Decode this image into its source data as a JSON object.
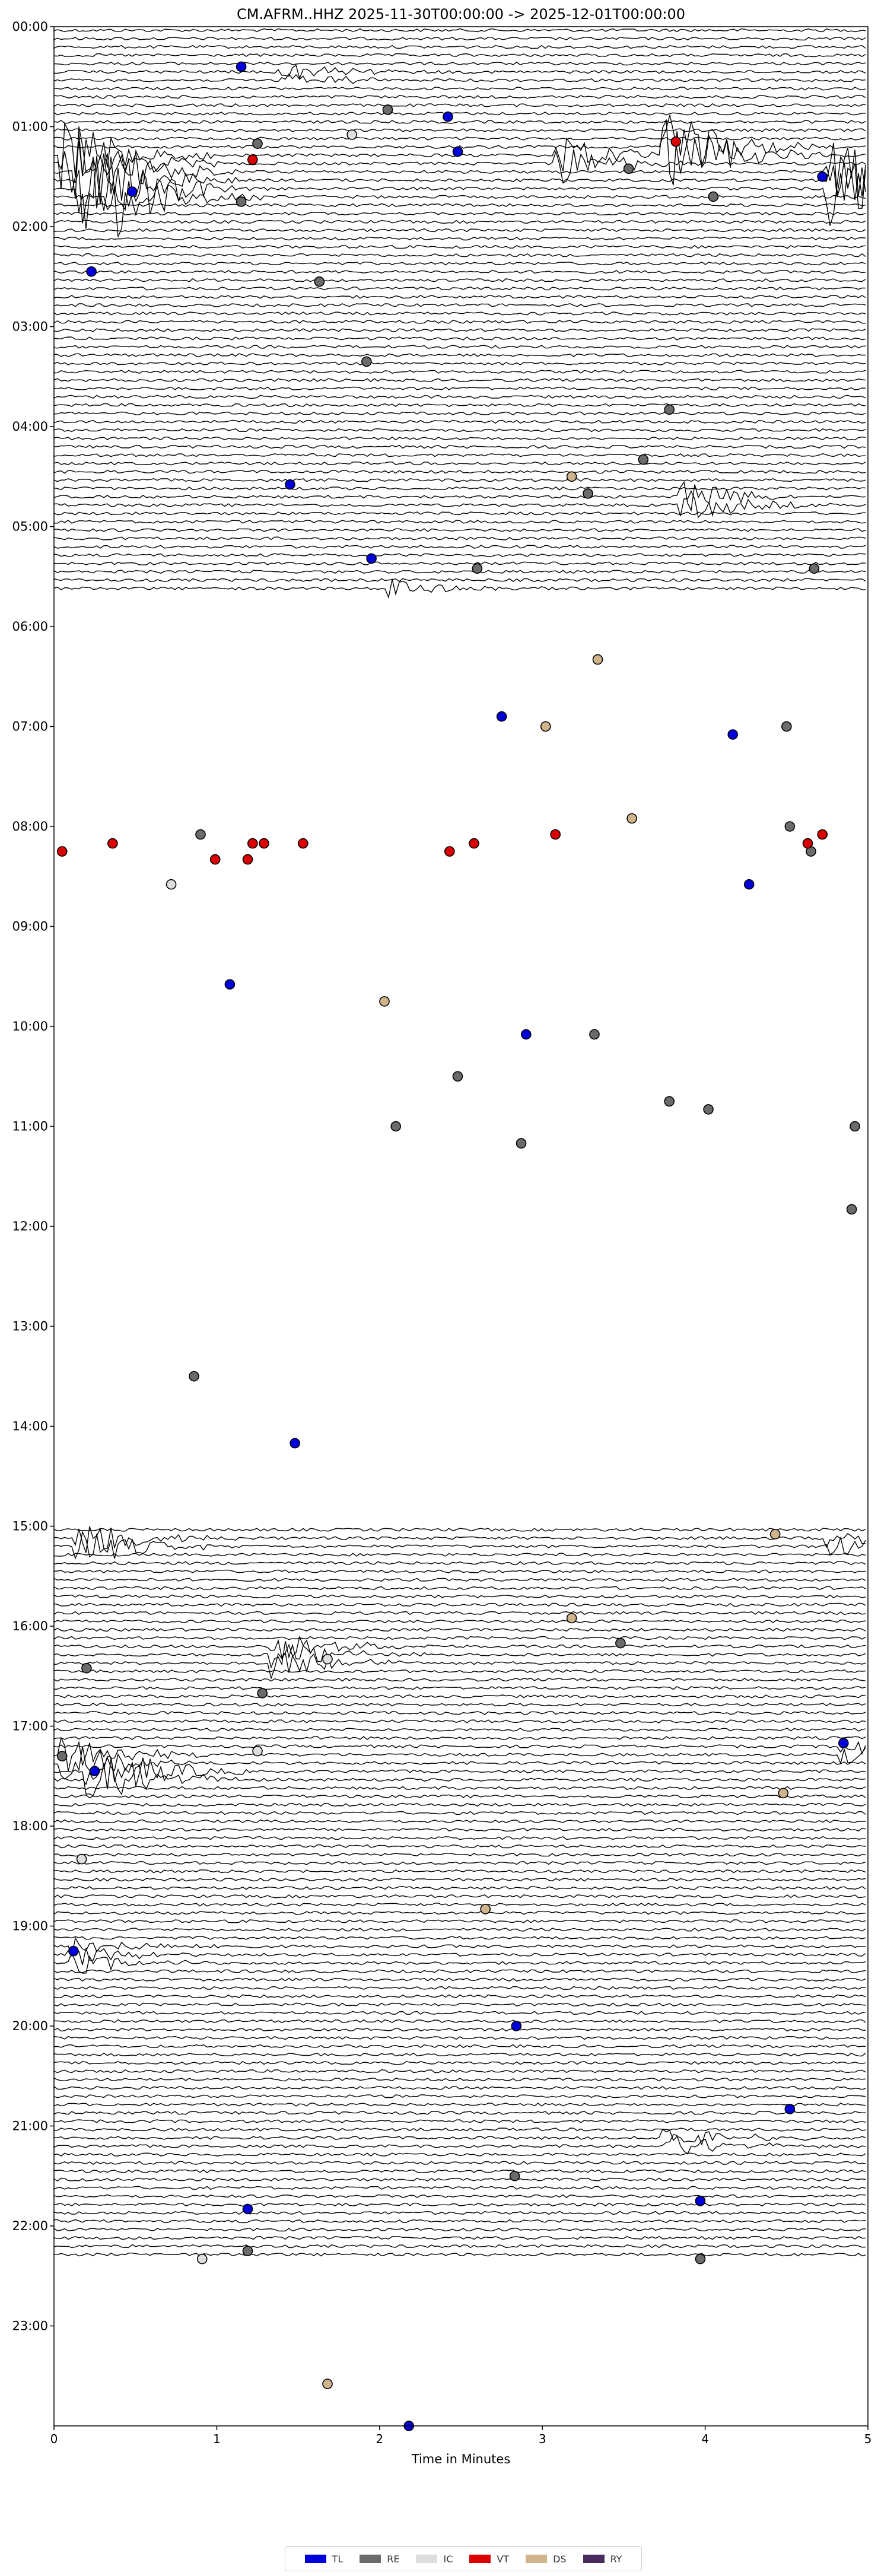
{
  "chart_data": {
    "type": "scatter",
    "title": "CM.AFRM..HHZ  2025-11-30T00:00:00 -> 2025-12-01T00:00:00",
    "xlabel": "Time in Minutes",
    "ylabel": "",
    "xlim": [
      0,
      5
    ],
    "x_ticks": [
      0,
      1,
      2,
      3,
      4,
      5
    ],
    "y_ticks": [
      "00:00",
      "01:00",
      "02:00",
      "03:00",
      "04:00",
      "05:00",
      "06:00",
      "07:00",
      "08:00",
      "09:00",
      "10:00",
      "11:00",
      "12:00",
      "13:00",
      "14:00",
      "15:00",
      "16:00",
      "17:00",
      "18:00",
      "19:00",
      "20:00",
      "21:00",
      "22:00",
      "23:00"
    ],
    "trace_interval_minutes": 5,
    "data_gaps": [
      {
        "start_hour": 5.6,
        "end_hour": 15.0
      },
      {
        "start_hour": 22.3,
        "end_hour": 24.0
      }
    ],
    "bursts": [
      {
        "hour": 0.45,
        "x": 1.45,
        "amp": 0.6
      },
      {
        "hour": 1.3,
        "x": 0.1,
        "amp": 3.0
      },
      {
        "hour": 1.5,
        "x": 0.2,
        "amp": 3.5
      },
      {
        "hour": 1.6,
        "x": 0.4,
        "amp": 2.5
      },
      {
        "hour": 1.3,
        "x": 3.15,
        "amp": 1.5
      },
      {
        "hour": 1.2,
        "x": 3.8,
        "amp": 3.0
      },
      {
        "hour": 1.5,
        "x": 4.8,
        "amp": 3.0
      },
      {
        "hour": 4.7,
        "x": 3.9,
        "amp": 1.2
      },
      {
        "hour": 5.6,
        "x": 2.1,
        "amp": 0.8
      },
      {
        "hour": 15.1,
        "x": 0.2,
        "amp": 1.5
      },
      {
        "hour": 15.1,
        "x": 4.8,
        "amp": 0.8
      },
      {
        "hour": 16.25,
        "x": 1.4,
        "amp": 1.2
      },
      {
        "hour": 17.3,
        "x": 0.1,
        "amp": 1.5
      },
      {
        "hour": 17.45,
        "x": 0.25,
        "amp": 2.5
      },
      {
        "hour": 17.2,
        "x": 4.9,
        "amp": 0.8
      },
      {
        "hour": 19.25,
        "x": 0.15,
        "amp": 0.8
      },
      {
        "hour": 21.15,
        "x": 3.8,
        "amp": 1.0
      }
    ],
    "series": [
      {
        "name": "TL",
        "color": "#0000dd",
        "points": [
          {
            "x": 1.15,
            "y": 0.4
          },
          {
            "x": 2.42,
            "y": 0.9
          },
          {
            "x": 2.48,
            "y": 1.25
          },
          {
            "x": 0.48,
            "y": 1.65
          },
          {
            "x": 4.72,
            "y": 1.5
          },
          {
            "x": 0.23,
            "y": 2.45
          },
          {
            "x": 1.45,
            "y": 4.58
          },
          {
            "x": 1.95,
            "y": 5.32
          },
          {
            "x": 2.75,
            "y": 6.9
          },
          {
            "x": 4.17,
            "y": 7.08
          },
          {
            "x": 4.27,
            "y": 8.58
          },
          {
            "x": 1.08,
            "y": 9.58
          },
          {
            "x": 2.9,
            "y": 10.08
          },
          {
            "x": 1.48,
            "y": 14.17
          },
          {
            "x": 0.12,
            "y": 19.25
          },
          {
            "x": 0.25,
            "y": 17.45
          },
          {
            "x": 4.85,
            "y": 17.17
          },
          {
            "x": 2.84,
            "y": 20.0
          },
          {
            "x": 4.52,
            "y": 20.83
          },
          {
            "x": 3.97,
            "y": 21.75
          },
          {
            "x": 1.19,
            "y": 21.83
          },
          {
            "x": 2.18,
            "y": 24.0
          }
        ]
      },
      {
        "name": "RE",
        "color": "#6b6b6b",
        "points": [
          {
            "x": 2.05,
            "y": 0.83
          },
          {
            "x": 1.25,
            "y": 1.17
          },
          {
            "x": 1.15,
            "y": 1.75
          },
          {
            "x": 3.53,
            "y": 1.42
          },
          {
            "x": 4.05,
            "y": 1.7
          },
          {
            "x": 1.63,
            "y": 2.55
          },
          {
            "x": 1.92,
            "y": 3.35
          },
          {
            "x": 3.78,
            "y": 3.83
          },
          {
            "x": 3.62,
            "y": 4.33
          },
          {
            "x": 3.28,
            "y": 4.67
          },
          {
            "x": 2.6,
            "y": 5.42
          },
          {
            "x": 4.67,
            "y": 5.42
          },
          {
            "x": 4.5,
            "y": 7.0
          },
          {
            "x": 0.9,
            "y": 8.08
          },
          {
            "x": 4.52,
            "y": 8.0
          },
          {
            "x": 4.65,
            "y": 8.25
          },
          {
            "x": 3.32,
            "y": 10.08
          },
          {
            "x": 2.48,
            "y": 10.5
          },
          {
            "x": 3.78,
            "y": 10.75
          },
          {
            "x": 4.02,
            "y": 10.83
          },
          {
            "x": 2.1,
            "y": 11.0
          },
          {
            "x": 2.87,
            "y": 11.17
          },
          {
            "x": 4.92,
            "y": 11.0
          },
          {
            "x": 4.9,
            "y": 11.83
          },
          {
            "x": 0.86,
            "y": 13.5
          },
          {
            "x": 0.2,
            "y": 16.42
          },
          {
            "x": 1.28,
            "y": 16.67
          },
          {
            "x": 0.05,
            "y": 17.3
          },
          {
            "x": 2.83,
            "y": 21.5
          },
          {
            "x": 1.19,
            "y": 22.25
          },
          {
            "x": 3.97,
            "y": 22.33
          },
          {
            "x": 3.48,
            "y": 16.17
          }
        ]
      },
      {
        "name": "IC",
        "color": "#dedede",
        "points": [
          {
            "x": 1.83,
            "y": 1.08
          },
          {
            "x": 0.72,
            "y": 8.58
          },
          {
            "x": 1.68,
            "y": 16.33
          },
          {
            "x": 0.17,
            "y": 18.33
          },
          {
            "x": 0.91,
            "y": 22.33
          },
          {
            "x": 1.25,
            "y": 17.25
          }
        ]
      },
      {
        "name": "VT",
        "color": "#dd0000",
        "points": [
          {
            "x": 1.22,
            "y": 1.33
          },
          {
            "x": 3.82,
            "y": 1.15
          },
          {
            "x": 0.05,
            "y": 8.25
          },
          {
            "x": 0.36,
            "y": 8.17
          },
          {
            "x": 0.99,
            "y": 8.33
          },
          {
            "x": 1.19,
            "y": 8.33
          },
          {
            "x": 1.22,
            "y": 8.17
          },
          {
            "x": 1.29,
            "y": 8.17
          },
          {
            "x": 1.53,
            "y": 8.17
          },
          {
            "x": 2.43,
            "y": 8.25
          },
          {
            "x": 2.58,
            "y": 8.17
          },
          {
            "x": 3.08,
            "y": 8.08
          },
          {
            "x": 4.63,
            "y": 8.17
          },
          {
            "x": 4.72,
            "y": 8.08
          }
        ]
      },
      {
        "name": "DS",
        "color": "#d2b48c",
        "points": [
          {
            "x": 3.34,
            "y": 6.33
          },
          {
            "x": 3.02,
            "y": 7.0
          },
          {
            "x": 3.55,
            "y": 7.92
          },
          {
            "x": 2.03,
            "y": 9.75
          },
          {
            "x": 1.68,
            "y": 23.58
          },
          {
            "x": 4.48,
            "y": 17.67
          },
          {
            "x": 2.65,
            "y": 18.83
          },
          {
            "x": 3.18,
            "y": 15.92
          },
          {
            "x": 3.18,
            "y": 4.5
          },
          {
            "x": 4.43,
            "y": 15.08
          }
        ]
      },
      {
        "name": "RY",
        "color": "#4b2a5e",
        "points": []
      }
    ],
    "legend": {
      "placement": "bottom-center"
    }
  }
}
